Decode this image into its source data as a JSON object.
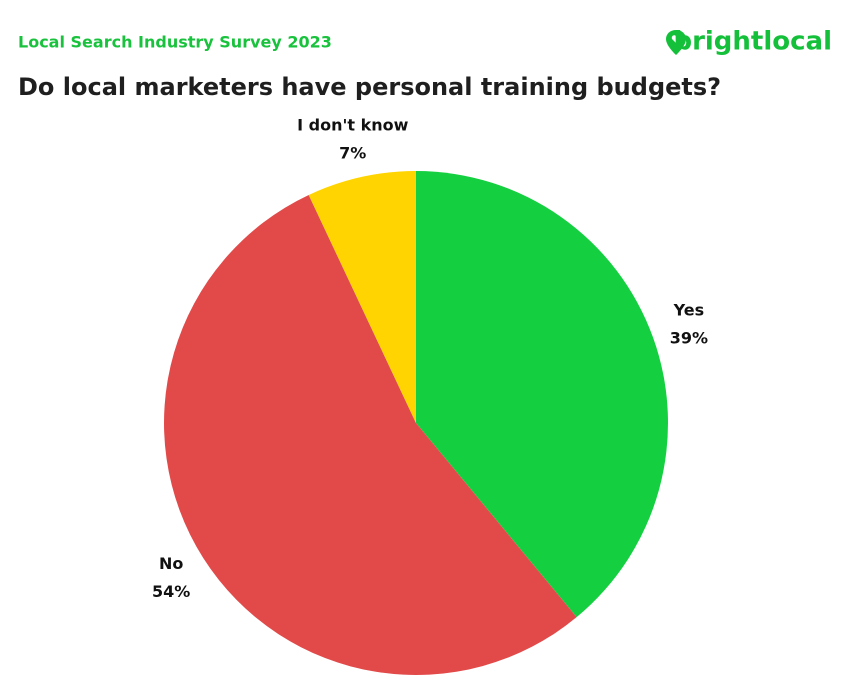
{
  "brand": "brightlocal",
  "chart_data": {
    "type": "pie",
    "subtitle": "Local Search Industry Survey 2023",
    "title": "Do local marketers have personal training budgets?",
    "categories": [
      "Yes",
      "No",
      "I don't know"
    ],
    "values": [
      39,
      54,
      7
    ],
    "value_labels": [
      "39%",
      "54%",
      "7%"
    ],
    "colors": [
      "#14d040",
      "#e24a4a",
      "#ffd400"
    ]
  }
}
